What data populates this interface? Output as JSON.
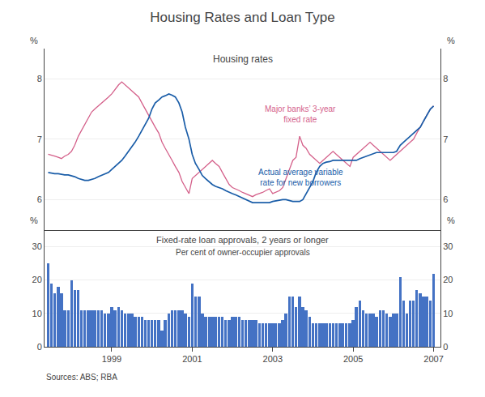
{
  "chart_data": [
    {
      "type": "line",
      "title": "Housing Rates and Loan Type",
      "subtitle": "Housing rates",
      "ylabel": "%",
      "y2label": "%",
      "annotations": [
        {
          "text": "Major banks’ 3-year\nfixed rate",
          "color": "#d4608a"
        },
        {
          "text": "Actual average variable\nrate for new borrowers",
          "color": "#1a5da8"
        }
      ],
      "x": [
        1997.42,
        1997.5,
        1997.58,
        1997.67,
        1997.75,
        1997.83,
        1997.92,
        1998.0,
        1998.08,
        1998.17,
        1998.25,
        1998.33,
        1998.42,
        1998.5,
        1998.58,
        1998.67,
        1998.75,
        1998.83,
        1998.92,
        1999.0,
        1999.08,
        1999.17,
        1999.25,
        1999.33,
        1999.42,
        1999.5,
        1999.58,
        1999.67,
        1999.75,
        1999.83,
        1999.92,
        2000.0,
        2000.08,
        2000.17,
        2000.25,
        2000.33,
        2000.42,
        2000.5,
        2000.58,
        2000.67,
        2000.75,
        2000.83,
        2000.92,
        2001.0,
        2001.08,
        2001.17,
        2001.25,
        2001.33,
        2001.42,
        2001.5,
        2001.58,
        2001.67,
        2001.75,
        2001.83,
        2001.92,
        2002.0,
        2002.08,
        2002.17,
        2002.25,
        2002.33,
        2002.42,
        2002.5,
        2002.58,
        2002.67,
        2002.75,
        2002.83,
        2002.92,
        2003.0,
        2003.08,
        2003.17,
        2003.25,
        2003.33,
        2003.42,
        2003.5,
        2003.58,
        2003.67,
        2003.75,
        2003.83,
        2003.92,
        2004.0,
        2004.08,
        2004.17,
        2004.25,
        2004.33,
        2004.42,
        2004.5,
        2004.58,
        2004.67,
        2004.75,
        2004.83,
        2004.92,
        2005.0,
        2005.08,
        2005.17,
        2005.25,
        2005.33,
        2005.42,
        2005.5,
        2005.58,
        2005.67,
        2005.75,
        2005.83,
        2005.92,
        2006.0,
        2006.08,
        2006.17,
        2006.25,
        2006.33,
        2006.42,
        2006.5,
        2006.58,
        2006.67,
        2006.75,
        2006.83,
        2006.92,
        2007.0
      ],
      "series": [
        {
          "color": "#d4608a",
          "values": [
            6.75,
            6.73,
            6.72,
            6.7,
            6.68,
            6.72,
            6.75,
            6.8,
            6.9,
            7.05,
            7.15,
            7.25,
            7.35,
            7.45,
            7.5,
            7.55,
            7.6,
            7.65,
            7.7,
            7.75,
            7.82,
            7.9,
            7.95,
            7.9,
            7.85,
            7.8,
            7.75,
            7.7,
            7.6,
            7.5,
            7.4,
            7.3,
            7.2,
            7.1,
            6.95,
            6.85,
            6.75,
            6.65,
            6.55,
            6.45,
            6.3,
            6.2,
            6.1,
            6.35,
            6.4,
            6.45,
            6.5,
            6.55,
            6.6,
            6.65,
            6.6,
            6.55,
            6.45,
            6.35,
            6.25,
            6.2,
            6.18,
            6.15,
            6.12,
            6.1,
            6.08,
            6.05,
            6.08,
            6.1,
            6.12,
            6.15,
            6.18,
            6.1,
            6.12,
            6.15,
            6.2,
            6.35,
            6.5,
            6.65,
            6.7,
            7.05,
            6.9,
            6.85,
            6.75,
            6.7,
            6.65,
            6.6,
            6.65,
            6.7,
            6.75,
            6.8,
            6.75,
            6.7,
            6.65,
            6.6,
            6.55,
            6.7,
            6.75,
            6.8,
            6.85,
            6.9,
            6.95,
            6.9,
            6.85,
            6.8,
            6.75,
            6.7,
            6.65,
            6.7,
            6.75,
            6.8,
            6.85,
            6.9,
            6.95,
            7.0,
            7.1,
            7.2,
            7.3,
            7.4,
            7.5,
            7.55
          ]
        },
        {
          "color": "#1a5da8",
          "values": [
            6.45,
            6.44,
            6.43,
            6.43,
            6.42,
            6.41,
            6.41,
            6.4,
            6.38,
            6.35,
            6.33,
            6.32,
            6.32,
            6.33,
            6.35,
            6.38,
            6.4,
            6.42,
            6.45,
            6.5,
            6.55,
            6.6,
            6.65,
            6.72,
            6.8,
            6.87,
            6.95,
            7.05,
            7.15,
            7.25,
            7.35,
            7.5,
            7.6,
            7.65,
            7.7,
            7.72,
            7.75,
            7.73,
            7.7,
            7.6,
            7.45,
            7.2,
            7.0,
            6.75,
            6.6,
            6.5,
            6.4,
            6.35,
            6.3,
            6.25,
            6.22,
            6.2,
            6.18,
            6.15,
            6.12,
            6.1,
            6.08,
            6.05,
            6.03,
            6.0,
            5.97,
            5.95,
            5.95,
            5.95,
            5.95,
            5.95,
            5.95,
            5.97,
            5.98,
            6.0,
            6.0,
            6.0,
            5.98,
            5.97,
            5.97,
            5.97,
            6.0,
            6.1,
            6.2,
            6.3,
            6.45,
            6.55,
            6.6,
            6.62,
            6.63,
            6.65,
            6.65,
            6.65,
            6.65,
            6.65,
            6.65,
            6.65,
            6.65,
            6.68,
            6.7,
            6.72,
            6.75,
            6.77,
            6.78,
            6.78,
            6.78,
            6.78,
            6.77,
            6.78,
            6.8,
            6.9,
            6.95,
            7.0,
            7.05,
            7.1,
            7.15,
            7.2,
            7.3,
            7.4,
            7.5,
            7.55
          ]
        }
      ],
      "xlim": [
        1997.33,
        2007.17
      ],
      "ylim": [
        5.5,
        8.5
      ],
      "yticks": [
        6,
        7,
        8
      ],
      "y2lim": [
        5.5,
        8.5
      ],
      "y2ticks": [
        6,
        7,
        8
      ],
      "grid": true,
      "tick_labels": "y"
    },
    {
      "type": "bar",
      "subtitle": "Fixed-rate loan approvals, 2 years or longer",
      "ylabel": "%",
      "y2label": "%",
      "annotations": [
        {
          "text": "Per cent of owner-occupier approvals"
        },
        {
          "text": "Sources: ABS; RBA"
        }
      ],
      "x": [
        1997.42,
        1997.5,
        1997.58,
        1997.67,
        1997.75,
        1997.83,
        1997.92,
        1998.0,
        1998.08,
        1998.17,
        1998.25,
        1998.33,
        1998.42,
        1998.5,
        1998.58,
        1998.67,
        1998.75,
        1998.83,
        1998.92,
        1999.0,
        1999.08,
        1999.17,
        1999.25,
        1999.33,
        1999.42,
        1999.5,
        1999.58,
        1999.67,
        1999.75,
        1999.83,
        1999.92,
        2000.0,
        2000.08,
        2000.17,
        2000.25,
        2000.33,
        2000.42,
        2000.5,
        2000.58,
        2000.67,
        2000.75,
        2000.83,
        2000.92,
        2001.0,
        2001.08,
        2001.17,
        2001.25,
        2001.33,
        2001.42,
        2001.5,
        2001.58,
        2001.67,
        2001.75,
        2001.83,
        2001.92,
        2002.0,
        2002.08,
        2002.17,
        2002.25,
        2002.33,
        2002.42,
        2002.5,
        2002.58,
        2002.67,
        2002.75,
        2002.83,
        2002.92,
        2003.0,
        2003.08,
        2003.17,
        2003.25,
        2003.33,
        2003.42,
        2003.5,
        2003.58,
        2003.67,
        2003.75,
        2003.83,
        2003.92,
        2004.0,
        2004.08,
        2004.17,
        2004.25,
        2004.33,
        2004.42,
        2004.5,
        2004.58,
        2004.67,
        2004.75,
        2004.83,
        2004.92,
        2005.0,
        2005.08,
        2005.17,
        2005.25,
        2005.33,
        2005.42,
        2005.5,
        2005.58,
        2005.67,
        2005.75,
        2005.83,
        2005.92,
        2006.0,
        2006.08,
        2006.17,
        2006.25,
        2006.33,
        2006.42,
        2006.5,
        2006.58,
        2006.67,
        2006.75,
        2006.83,
        2006.92,
        2007.0
      ],
      "values": [
        25,
        19,
        16,
        18,
        16,
        11,
        11,
        20,
        17,
        17,
        11,
        11,
        11,
        11,
        11,
        11,
        11,
        10,
        10,
        12,
        11,
        12,
        11,
        10,
        10,
        10,
        9,
        9,
        9,
        8,
        8,
        8,
        8,
        8,
        5,
        8,
        10,
        11,
        11,
        11,
        11,
        10,
        9,
        19,
        15,
        15,
        10,
        9,
        9,
        9,
        9,
        9,
        9,
        8,
        8,
        9,
        9,
        9,
        8,
        8,
        8,
        8,
        8,
        7,
        7,
        7,
        7,
        7,
        7,
        7,
        8,
        10,
        15,
        15,
        12,
        15,
        12,
        11,
        9,
        7,
        7,
        7,
        7,
        7,
        7,
        7,
        7,
        7,
        7,
        7,
        7,
        8,
        12,
        14,
        11,
        10,
        10,
        10,
        9,
        11,
        11,
        10,
        9,
        10,
        10,
        21,
        14,
        10,
        14,
        14,
        17,
        16,
        15,
        15,
        14,
        22
      ],
      "color": "#4472c4",
      "xlim": [
        1997.33,
        2007.17
      ],
      "xticks": [
        1999,
        2001,
        2003,
        2005,
        2007
      ],
      "ylim": [
        0,
        35
      ],
      "yticks": [
        0,
        10,
        20,
        30
      ],
      "y2lim": [
        0,
        35
      ],
      "y2ticks": [
        0,
        10,
        20,
        30
      ],
      "grid": true
    }
  ]
}
